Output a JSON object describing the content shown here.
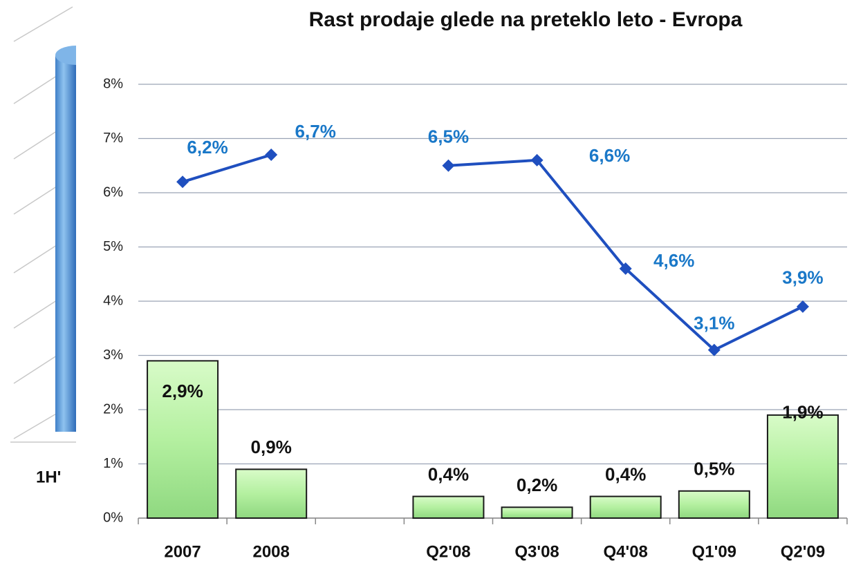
{
  "chart_data": {
    "type": "combo",
    "title": "Rast prodaje glede na preteklo leto - Evropa",
    "categories": [
      "2007",
      "2008",
      null,
      "Q2'08",
      "Q3'08",
      "Q4'08",
      "Q1'09",
      "Q2'09"
    ],
    "series": [
      {
        "type": "bar",
        "color": "#b4f0a0",
        "values": [
          2.9,
          0.9,
          null,
          0.4,
          0.2,
          0.4,
          0.5,
          1.9
        ],
        "value_labels": [
          "2,9%",
          "0,9%",
          null,
          "0,4%",
          "0,2%",
          "0,4%",
          "0,5%",
          "1,9%"
        ]
      },
      {
        "type": "line",
        "color": "#1f4fbf",
        "label_color": "#1a78c8",
        "values": [
          6.2,
          6.7,
          null,
          6.5,
          6.6,
          4.6,
          3.1,
          3.9
        ],
        "value_labels": [
          "6,2%",
          "6,7%",
          null,
          "6,5%",
          "6,6%",
          "4,6%",
          "3,1%",
          "3,9%"
        ]
      }
    ],
    "ylim": [
      0,
      8
    ],
    "yticks": [
      {
        "value": 0,
        "label": "0%"
      },
      {
        "value": 1,
        "label": "1%"
      },
      {
        "value": 2,
        "label": "2%"
      },
      {
        "value": 3,
        "label": "3%"
      },
      {
        "value": 4,
        "label": "4%"
      },
      {
        "value": 5,
        "label": "5%"
      },
      {
        "value": 6,
        "label": "6%"
      },
      {
        "value": 7,
        "label": "7%"
      },
      {
        "value": 8,
        "label": "8%"
      }
    ],
    "grid": true
  },
  "background_chart": {
    "label": "1H'"
  }
}
